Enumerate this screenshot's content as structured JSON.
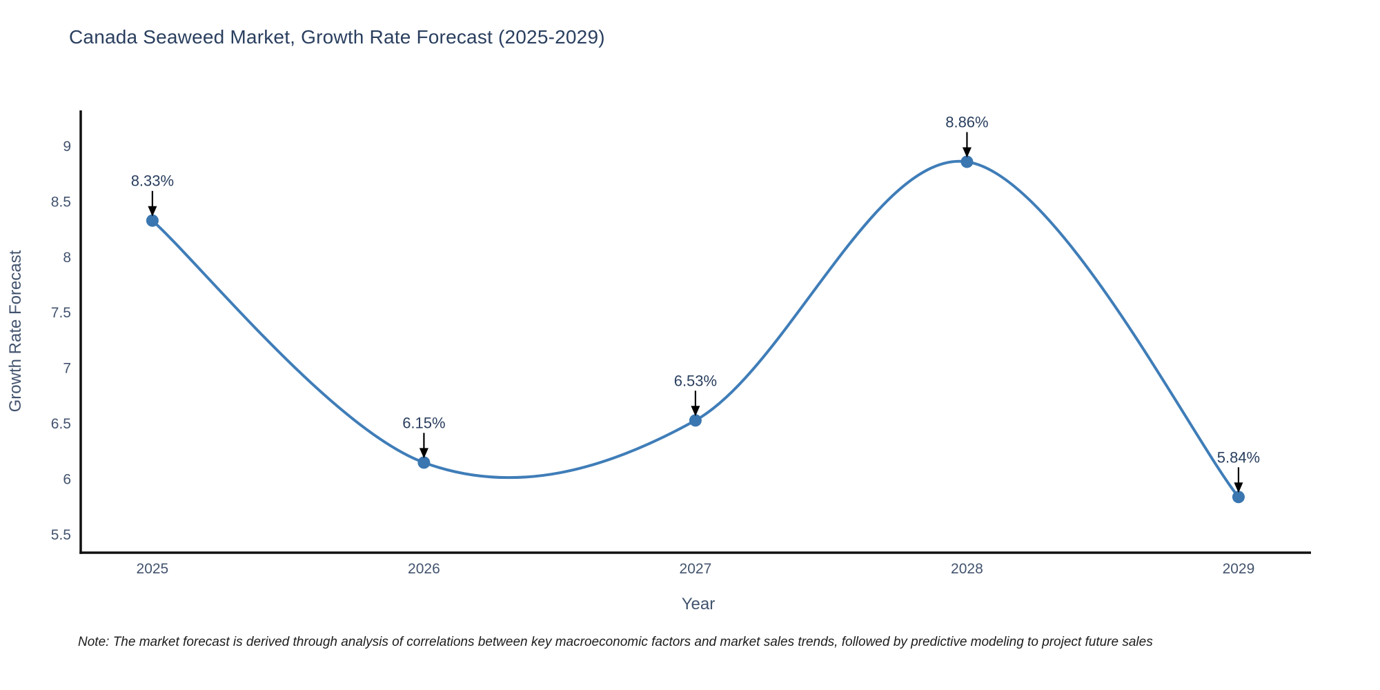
{
  "chart": {
    "title": "Canada Seaweed Market, Growth Rate Forecast (2025-2029)",
    "xlabel": "Year",
    "ylabel": "Growth Rate Forecast",
    "note": "Note: The market forecast is derived through analysis of correlations between key macroeconomic factors and market sales trends, followed by predictive modeling to project future sales"
  },
  "chart_data": {
    "type": "line",
    "line_shape": "spline",
    "title": "Canada Seaweed Market, Growth Rate Forecast (2025-2029)",
    "xlabel": "Year",
    "ylabel": "Growth Rate Forecast",
    "x": [
      2025,
      2026,
      2027,
      2028,
      2029
    ],
    "values": [
      8.33,
      6.15,
      6.53,
      8.86,
      5.84
    ],
    "point_labels": [
      "8.33%",
      "6.15%",
      "6.53%",
      "8.86%",
      "5.84%"
    ],
    "xticks": [
      2025,
      2026,
      2027,
      2028,
      2029
    ],
    "yticks": [
      5.5,
      6,
      6.5,
      7,
      7.5,
      8,
      8.5,
      9
    ],
    "xlim": [
      2024.736,
      2029.267
    ],
    "ylim": [
      5.338,
      9.323
    ],
    "grid": false,
    "legend": "none",
    "colors": {
      "line": "#3f7db8",
      "marker": "#3a76b0",
      "axis": "#111111",
      "tick_text": "#42536e",
      "title_text": "#2a3f5f",
      "annotation_text": "#2a3f5f",
      "arrow": "#000000",
      "note_text": "#1c1c1c"
    }
  }
}
